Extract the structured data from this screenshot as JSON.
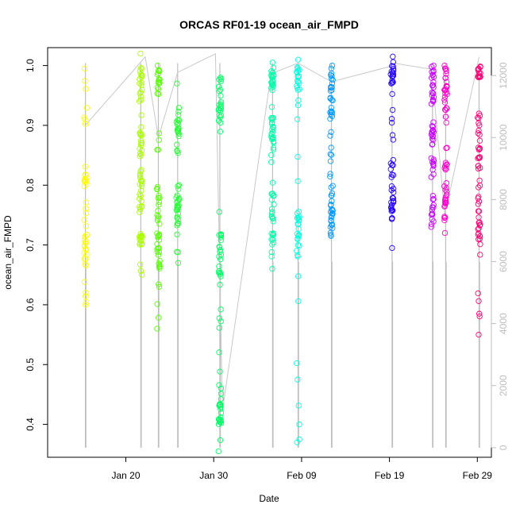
{
  "chart_data": {
    "type": "scatter",
    "title": "ORCAS RF01-19 ocean_air_FMPD",
    "xlabel": "Date",
    "ylabel": "ocean_air_FMPD",
    "x_ticks": [
      "Jan 20",
      "Jan 30",
      "Feb 09",
      "Feb 19",
      "Feb 29"
    ],
    "y_ticks": [
      "0.4",
      "0.5",
      "0.6",
      "0.7",
      "0.8",
      "0.9",
      "1.0"
    ],
    "y2_ticks": [
      "0",
      "2000",
      "4000",
      "6000",
      "8000",
      "10000",
      "12000"
    ],
    "xlim_day": [
      11.1,
      61.6
    ],
    "ylim": [
      0.345,
      1.03
    ],
    "y2lim": [
      -310,
      12900
    ],
    "flights": [
      {
        "day": 15.4,
        "color": "#ffff00",
        "min": 0.6,
        "max": 0.995,
        "dense": [
          [
            0.66,
            0.82
          ]
        ]
      },
      {
        "day": 21.7,
        "color": "#aaff00",
        "min": 0.65,
        "max": 1.02,
        "dense": [
          [
            0.7,
            0.72
          ],
          [
            0.76,
            0.9
          ],
          [
            0.94,
            1.0
          ]
        ]
      },
      {
        "day": 23.7,
        "color": "#55ff00",
        "min": 0.56,
        "max": 1.0,
        "dense": [
          [
            0.66,
            0.8
          ],
          [
            0.95,
            1.0
          ]
        ]
      },
      {
        "day": 25.9,
        "color": "#22ff33",
        "min": 0.67,
        "max": 0.97,
        "dense": [
          [
            0.73,
            0.78
          ],
          [
            0.88,
            0.93
          ]
        ]
      },
      {
        "day": 30.7,
        "color": "#00ff66",
        "min": 0.355,
        "max": 0.98,
        "dense": [
          [
            0.4,
            0.48
          ],
          [
            0.64,
            0.72
          ],
          [
            0.9,
            0.98
          ]
        ]
      },
      {
        "day": 36.7,
        "color": "#00ffaa",
        "min": 0.66,
        "max": 1.005,
        "dense": [
          [
            0.68,
            0.79
          ],
          [
            0.85,
            0.91
          ],
          [
            0.96,
            1.0
          ]
        ]
      },
      {
        "day": 39.6,
        "color": "#00ffdd",
        "min": 0.37,
        "max": 1.01,
        "dense": [
          [
            0.68,
            0.76
          ],
          [
            0.95,
            1.0
          ]
        ]
      },
      {
        "day": 43.4,
        "color": "#0099ff",
        "min": 0.715,
        "max": 1.0,
        "dense": [
          [
            0.72,
            0.8
          ],
          [
            0.9,
            1.0
          ]
        ]
      },
      {
        "day": 50.3,
        "color": "#2200ff",
        "min": 0.695,
        "max": 1.015,
        "dense": [
          [
            0.74,
            0.84
          ],
          [
            0.97,
            1.01
          ]
        ]
      },
      {
        "day": 54.9,
        "color": "#cc00ff",
        "min": 0.73,
        "max": 1.0,
        "dense": [
          [
            0.74,
            0.9
          ],
          [
            0.94,
            1.0
          ]
        ]
      },
      {
        "day": 56.4,
        "color": "#ff00cc",
        "min": 0.72,
        "max": 1.0,
        "dense": [
          [
            0.74,
            0.84
          ],
          [
            0.9,
            1.0
          ]
        ]
      },
      {
        "day": 60.2,
        "color": "#ff0077",
        "min": 0.55,
        "max": 0.995,
        "dense": [
          [
            0.7,
            0.92
          ],
          [
            0.98,
            1.0
          ]
        ]
      }
    ],
    "altitude_path": [
      [
        15.4,
        10400
      ],
      [
        21.6,
        12400
      ],
      [
        22.2,
        12600
      ],
      [
        23.7,
        10000
      ],
      [
        25.9,
        12100
      ],
      [
        30.2,
        12700
      ],
      [
        31.0,
        1200
      ],
      [
        36.6,
        12200
      ],
      [
        36.9,
        12100
      ],
      [
        39.6,
        12400
      ],
      [
        43.4,
        11800
      ],
      [
        50.2,
        12300
      ],
      [
        50.5,
        12400
      ],
      [
        54.8,
        12200
      ],
      [
        56.3,
        7500
      ],
      [
        60.2,
        12600
      ]
    ],
    "vline_color": "#bebebe"
  }
}
